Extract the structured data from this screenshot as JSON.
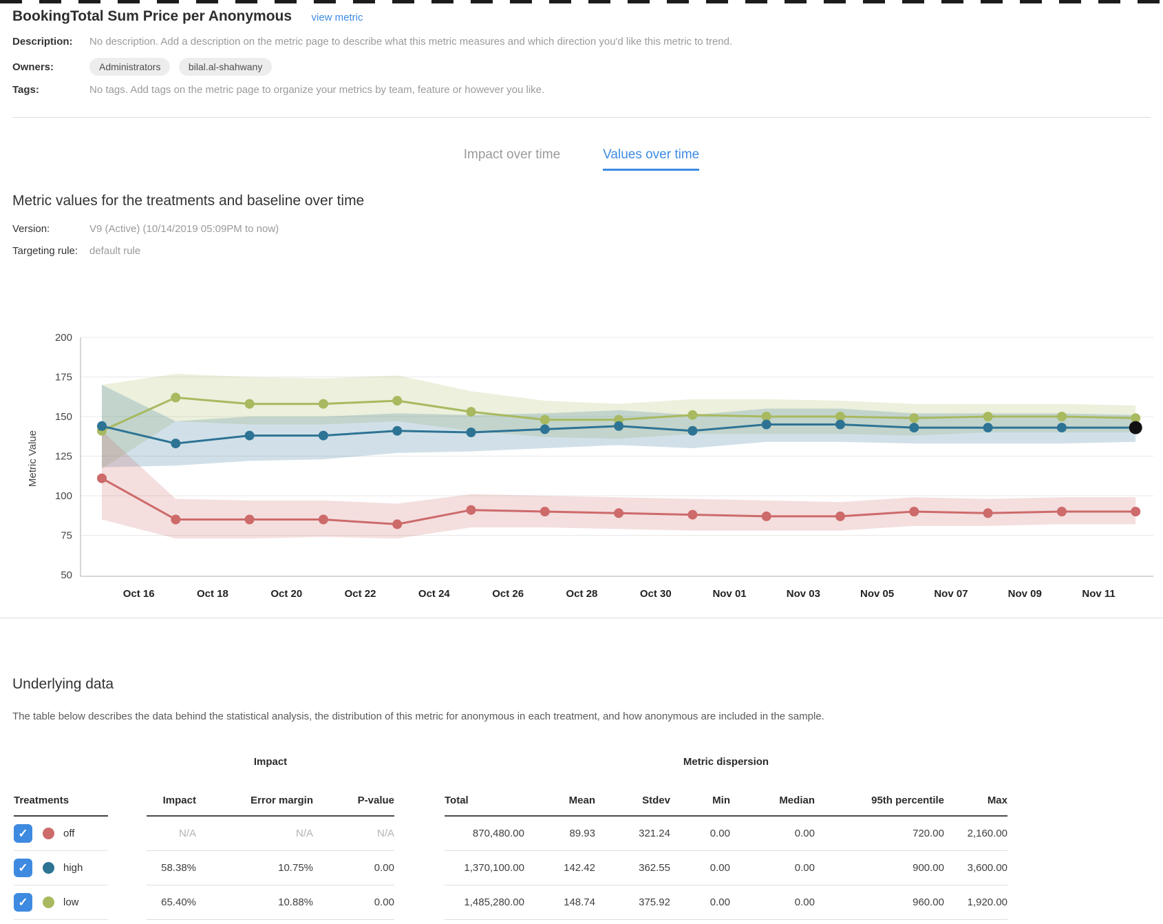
{
  "header": {
    "title": "BookingTotal Sum Price per Anonymous",
    "view_metric_link": "view metric",
    "description_label": "Description:",
    "description_value": "No description. Add a description on the metric page to describe what this metric measures and which direction you'd like this metric to trend.",
    "owners_label": "Owners:",
    "owners": [
      "Administrators",
      "bilal.al-shahwany"
    ],
    "tags_label": "Tags:",
    "tags_value": "No tags. Add tags on the metric page to organize your metrics by team, feature or however you like."
  },
  "tabs": [
    {
      "label": "Impact over time",
      "active": false
    },
    {
      "label": "Values over time",
      "active": true
    }
  ],
  "values_section": {
    "heading": "Metric values for the treatments and baseline over time",
    "version_label": "Version:",
    "version_value": "V9 (Active) (10/14/2019 05:09PM to now)",
    "targeting_label": "Targeting rule:",
    "targeting_value": "default rule"
  },
  "chart_data": {
    "type": "line",
    "title": "",
    "xlabel": "",
    "ylabel": "Metric Value",
    "ylim": [
      50,
      200
    ],
    "yticks": [
      200,
      175,
      150,
      125,
      100,
      75,
      50
    ],
    "x_labels": [
      "Oct 16",
      "Oct 18",
      "Oct 20",
      "Oct 22",
      "Oct 24",
      "Oct 26",
      "Oct 28",
      "Oct 30",
      "Nov 01",
      "Nov 03",
      "Nov 05",
      "Nov 07",
      "Nov 09",
      "Nov 11"
    ],
    "x_label_alignment": "labels fall midway between adjacent data points; 15 points sampled every 2 days",
    "grid": true,
    "legend_position": "none",
    "band_opacity": 0.22,
    "series": [
      {
        "name": "low",
        "color": "#a8b95f",
        "values": [
          141,
          162,
          158,
          158,
          160,
          153,
          148,
          148,
          151,
          150,
          150,
          149,
          150,
          150,
          149
        ],
        "lower": [
          117,
          147,
          145,
          145,
          147,
          141,
          137,
          136,
          139,
          139,
          139,
          138,
          140,
          140,
          140
        ],
        "upper": [
          170,
          177,
          175,
          174,
          176,
          166,
          160,
          158,
          161,
          161,
          160,
          158,
          158,
          158,
          157
        ]
      },
      {
        "name": "high",
        "color": "#2d7394",
        "last_point_color": "#111111",
        "values": [
          144,
          133,
          138,
          138,
          141,
          140,
          142,
          144,
          141,
          145,
          145,
          143,
          143,
          143,
          143
        ],
        "lower": [
          118,
          119,
          122,
          123,
          127,
          128,
          130,
          132,
          130,
          134,
          134,
          133,
          133,
          133,
          134
        ],
        "upper": [
          170,
          147,
          150,
          150,
          152,
          151,
          152,
          154,
          151,
          155,
          155,
          152,
          152,
          152,
          151
        ]
      },
      {
        "name": "off",
        "color": "#cd6a6a",
        "values": [
          111,
          85,
          85,
          85,
          82,
          91,
          90,
          89,
          88,
          87,
          87,
          90,
          89,
          90,
          90
        ],
        "lower": [
          85,
          73,
          73,
          74,
          73,
          80,
          80,
          79,
          78,
          78,
          78,
          81,
          81,
          82,
          82
        ],
        "upper": [
          141,
          98,
          97,
          97,
          95,
          101,
          100,
          99,
          98,
          97,
          96,
          99,
          98,
          99,
          99
        ]
      }
    ]
  },
  "underlying": {
    "heading": "Underlying data",
    "description": "The table below describes the data behind the statistical analysis, the distribution of this metric for anonymous in each treatment, and how anonymous are included in the sample.",
    "table": {
      "treatments_header": "Treatments",
      "impact_group_header": "Impact",
      "dispersion_group_header": "Metric dispersion",
      "impact_columns": [
        "Impact",
        "Error margin",
        "P-value"
      ],
      "dispersion_columns": [
        "Total",
        "Mean",
        "Stdev",
        "Min",
        "Median",
        "95th percentile",
        "Max"
      ],
      "rows": [
        {
          "treatment": "off",
          "color": "#cd6a6a",
          "checked": true,
          "impact": [
            "N/A",
            "N/A",
            "N/A"
          ],
          "impact_is_na": true,
          "dispersion": [
            "870,480.00",
            "89.93",
            "321.24",
            "0.00",
            "0.00",
            "720.00",
            "2,160.00"
          ]
        },
        {
          "treatment": "high",
          "color": "#2d7394",
          "checked": true,
          "impact": [
            "58.38%",
            "10.75%",
            "0.00"
          ],
          "impact_is_na": false,
          "dispersion": [
            "1,370,100.00",
            "142.42",
            "362.55",
            "0.00",
            "0.00",
            "900.00",
            "3,600.00"
          ]
        },
        {
          "treatment": "low",
          "color": "#a8b95f",
          "checked": true,
          "impact": [
            "65.40%",
            "10.88%",
            "0.00"
          ],
          "impact_is_na": false,
          "dispersion": [
            "1,485,280.00",
            "148.74",
            "375.92",
            "0.00",
            "0.00",
            "960.00",
            "1,920.00"
          ]
        }
      ]
    }
  }
}
